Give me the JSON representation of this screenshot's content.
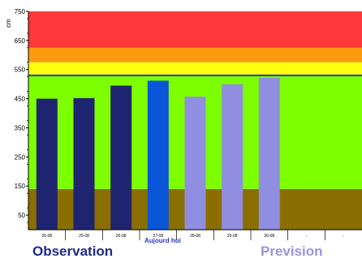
{
  "chart_data": {
    "type": "bar",
    "ylabel": "cm",
    "ylim": [
      0,
      750
    ],
    "y_ticks": [
      50,
      150,
      250,
      350,
      450,
      550,
      650,
      750
    ],
    "categories": [
      "26-08",
      "25-08",
      "26-08",
      "27-08",
      "28-08",
      "29-08",
      "30-08",
      "-",
      "-"
    ],
    "series": [
      {
        "values": [
          450,
          452,
          495,
          512,
          null,
          null,
          null,
          null,
          null
        ]
      },
      {
        "values": [
          null,
          null,
          null,
          null,
          457,
          500,
          522,
          null,
          null
        ]
      }
    ],
    "threshold_line": 530,
    "bands": [
      {
        "from": 0,
        "to": 140,
        "color": "#8a6f00"
      },
      {
        "from": 140,
        "to": 530,
        "color": "#7dff00"
      },
      {
        "from": 530,
        "to": 575,
        "color": "#ffff10"
      },
      {
        "from": 575,
        "to": 625,
        "color": "#ff9a10"
      },
      {
        "from": 625,
        "to": 750,
        "color": "#ff3838"
      }
    ],
    "bar_colors": [
      "#1f2470",
      "#1f2470",
      "#1f2470",
      "#0a55d8",
      "#8f8ee0",
      "#8f8ee0",
      "#8f8ee0",
      "#8f8ee0",
      "#8f8ee0"
    ]
  },
  "labels": {
    "observation": "Observation",
    "prevision": "Prevision",
    "today": "Aujourd hui"
  }
}
